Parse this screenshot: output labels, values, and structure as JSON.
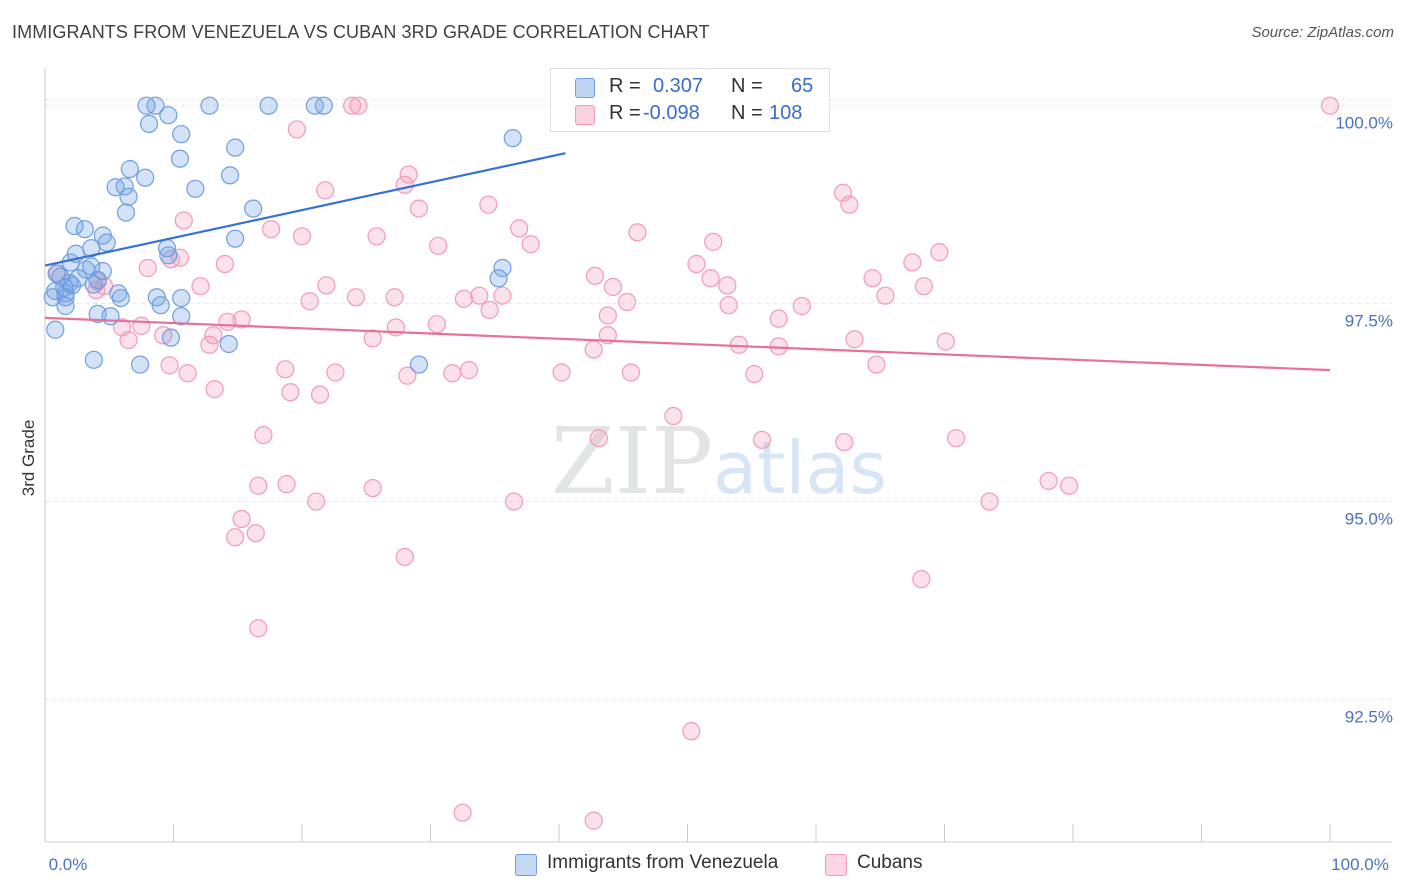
{
  "title": "IMMIGRANTS FROM VENEZUELA VS CUBAN 3RD GRADE CORRELATION CHART",
  "source": "Source: ZipAtlas.com",
  "watermark": {
    "zip": "ZIP",
    "atlas": "atlas"
  },
  "legend": {
    "rows": [
      {
        "r_key": "R =",
        "r_value": "0.307",
        "n_key": "N =",
        "n_value": "65",
        "color": "#6e9fe0"
      },
      {
        "r_key": "R =",
        "r_value": "-0.098",
        "n_key": "N =",
        "n_value": "108",
        "color": "#f29ab8"
      }
    ]
  },
  "bottom_legend": [
    {
      "label": "Immigrants from Venezuela",
      "color": "#6e9fe0"
    },
    {
      "label": "Cubans",
      "color": "#f29ab8"
    }
  ],
  "chart_data": {
    "type": "scatter",
    "title": "IMMIGRANTS FROM VENEZUELA VS CUBAN 3RD GRADE CORRELATION CHART",
    "xlabel": "",
    "ylabel": "3rd Grade",
    "xlim": [
      0,
      100
    ],
    "ylim": [
      90.7,
      100.4
    ],
    "x_tick_labels": [
      "0.0%",
      "100.0%"
    ],
    "y_ticks": [
      92.5,
      95.0,
      97.5,
      100.0
    ],
    "y_tick_labels": [
      "92.5%",
      "95.0%",
      "97.5%",
      "100.0%"
    ],
    "grid": true,
    "series": [
      {
        "name": "Immigrants from Venezuela",
        "color": "#6e9fe0",
        "trend": {
          "x": [
            0,
            40.5
          ],
          "y": [
            97.98,
            99.4
          ]
        },
        "points": [
          [
            7.9,
            100
          ],
          [
            8.6,
            100
          ],
          [
            12.8,
            100
          ],
          [
            17.4,
            100
          ],
          [
            21,
            100
          ],
          [
            21.7,
            100
          ],
          [
            9.6,
            99.88
          ],
          [
            8.1,
            99.77
          ],
          [
            10.6,
            99.64
          ],
          [
            36.4,
            99.59
          ],
          [
            14.8,
            99.47
          ],
          [
            10.5,
            99.33
          ],
          [
            6.6,
            99.2
          ],
          [
            7.8,
            99.09
          ],
          [
            14.4,
            99.12
          ],
          [
            6.2,
            98.98
          ],
          [
            5.5,
            98.97
          ],
          [
            11.7,
            98.95
          ],
          [
            6.5,
            98.85
          ],
          [
            16.2,
            98.7
          ],
          [
            6.3,
            98.65
          ],
          [
            2.3,
            98.48
          ],
          [
            3.1,
            98.44
          ],
          [
            4.5,
            98.36
          ],
          [
            14.8,
            98.32
          ],
          [
            4.8,
            98.27
          ],
          [
            3.6,
            98.2
          ],
          [
            9.5,
            98.2
          ],
          [
            2.4,
            98.13
          ],
          [
            9.6,
            98.11
          ],
          [
            2.0,
            98.02
          ],
          [
            3.6,
            97.97
          ],
          [
            3.2,
            97.93
          ],
          [
            4.5,
            97.91
          ],
          [
            35.6,
            97.95
          ],
          [
            0.9,
            97.88
          ],
          [
            1.2,
            97.84
          ],
          [
            2.6,
            97.82
          ],
          [
            4.1,
            97.8
          ],
          [
            35.3,
            97.82
          ],
          [
            1.9,
            97.76
          ],
          [
            2.1,
            97.73
          ],
          [
            1.5,
            97.7
          ],
          [
            3.8,
            97.74
          ],
          [
            0.8,
            97.66
          ],
          [
            1.6,
            97.63
          ],
          [
            5.7,
            97.63
          ],
          [
            0.6,
            97.58
          ],
          [
            1.6,
            97.58
          ],
          [
            5.9,
            97.57
          ],
          [
            8.7,
            97.58
          ],
          [
            10.6,
            97.57
          ],
          [
            1.6,
            97.47
          ],
          [
            9.0,
            97.48
          ],
          [
            4.1,
            97.37
          ],
          [
            5.1,
            97.34
          ],
          [
            10.6,
            97.34
          ],
          [
            0.8,
            97.17
          ],
          [
            9.8,
            97.07
          ],
          [
            14.3,
            96.99
          ],
          [
            3.8,
            96.79
          ],
          [
            7.4,
            96.73
          ],
          [
            29.1,
            96.73
          ]
        ]
      },
      {
        "name": "Cubans",
        "color": "#f29ab8",
        "trend": {
          "x": [
            0,
            100
          ],
          "y": [
            97.32,
            96.66
          ]
        },
        "points": [
          [
            23.9,
            100
          ],
          [
            24.4,
            100
          ],
          [
            100,
            100
          ],
          [
            19.6,
            99.7
          ],
          [
            28.3,
            99.13
          ],
          [
            28,
            99.0
          ],
          [
            21.8,
            98.93
          ],
          [
            62.1,
            98.9
          ],
          [
            34.5,
            98.75
          ],
          [
            62.6,
            98.75
          ],
          [
            29.1,
            98.7
          ],
          [
            10.8,
            98.55
          ],
          [
            36.9,
            98.45
          ],
          [
            17.6,
            98.44
          ],
          [
            46.1,
            98.4
          ],
          [
            20,
            98.35
          ],
          [
            25.8,
            98.35
          ],
          [
            52,
            98.28
          ],
          [
            30.6,
            98.23
          ],
          [
            37.8,
            98.25
          ],
          [
            69.6,
            98.15
          ],
          [
            9.8,
            98.06
          ],
          [
            10.5,
            98.08
          ],
          [
            14,
            98.0
          ],
          [
            50.7,
            98.0
          ],
          [
            67.5,
            98.02
          ],
          [
            8.0,
            97.95
          ],
          [
            1.0,
            97.88
          ],
          [
            42.8,
            97.85
          ],
          [
            51.8,
            97.82
          ],
          [
            64.4,
            97.82
          ],
          [
            4.1,
            97.78
          ],
          [
            4.6,
            97.72
          ],
          [
            12.1,
            97.72
          ],
          [
            21.9,
            97.73
          ],
          [
            53.1,
            97.73
          ],
          [
            68.4,
            97.72
          ],
          [
            44.2,
            97.71
          ],
          [
            4.0,
            97.67
          ],
          [
            33.8,
            97.6
          ],
          [
            35.6,
            97.6
          ],
          [
            65.4,
            97.6
          ],
          [
            24.2,
            97.58
          ],
          [
            27.2,
            97.58
          ],
          [
            32.6,
            97.56
          ],
          [
            20.6,
            97.53
          ],
          [
            45.3,
            97.52
          ],
          [
            53.2,
            97.48
          ],
          [
            58.9,
            97.47
          ],
          [
            34.6,
            97.42
          ],
          [
            43.8,
            97.35
          ],
          [
            57.1,
            97.31
          ],
          [
            15.3,
            97.3
          ],
          [
            7.5,
            97.22
          ],
          [
            6.0,
            97.2
          ],
          [
            14.2,
            97.27
          ],
          [
            30.5,
            97.24
          ],
          [
            27.3,
            97.2
          ],
          [
            9.2,
            97.1
          ],
          [
            13.1,
            97.1
          ],
          [
            25.5,
            97.06
          ],
          [
            43.8,
            97.1
          ],
          [
            63.0,
            97.05
          ],
          [
            70.1,
            97.02
          ],
          [
            6.5,
            97.04
          ],
          [
            12.8,
            96.98
          ],
          [
            54.0,
            96.98
          ],
          [
            57.1,
            96.96
          ],
          [
            42.7,
            96.92
          ],
          [
            9.7,
            96.72
          ],
          [
            64.7,
            96.73
          ],
          [
            11.1,
            96.62
          ],
          [
            18.7,
            96.67
          ],
          [
            22.6,
            96.63
          ],
          [
            28.2,
            96.59
          ],
          [
            31.7,
            96.62
          ],
          [
            33.0,
            96.66
          ],
          [
            40.2,
            96.63
          ],
          [
            45.6,
            96.63
          ],
          [
            55.2,
            96.61
          ],
          [
            13.2,
            96.42
          ],
          [
            19.1,
            96.38
          ],
          [
            21.4,
            96.35
          ],
          [
            48.9,
            96.08
          ],
          [
            43.1,
            95.8
          ],
          [
            55.8,
            95.78
          ],
          [
            62.2,
            95.75
          ],
          [
            70.9,
            95.8
          ],
          [
            17.0,
            95.84
          ],
          [
            18.8,
            95.22
          ],
          [
            16.6,
            95.2
          ],
          [
            25.5,
            95.17
          ],
          [
            21.1,
            95.0
          ],
          [
            36.5,
            95.0
          ],
          [
            73.5,
            95.0
          ],
          [
            78.1,
            95.26
          ],
          [
            79.7,
            95.2
          ],
          [
            15.3,
            94.78
          ],
          [
            16.4,
            94.6
          ],
          [
            14.8,
            94.55
          ],
          [
            28.0,
            94.3
          ],
          [
            68.2,
            94.02
          ],
          [
            16.6,
            93.4
          ],
          [
            50.3,
            92.1
          ],
          [
            32.5,
            91.07
          ],
          [
            42.7,
            90.97
          ]
        ]
      }
    ]
  }
}
